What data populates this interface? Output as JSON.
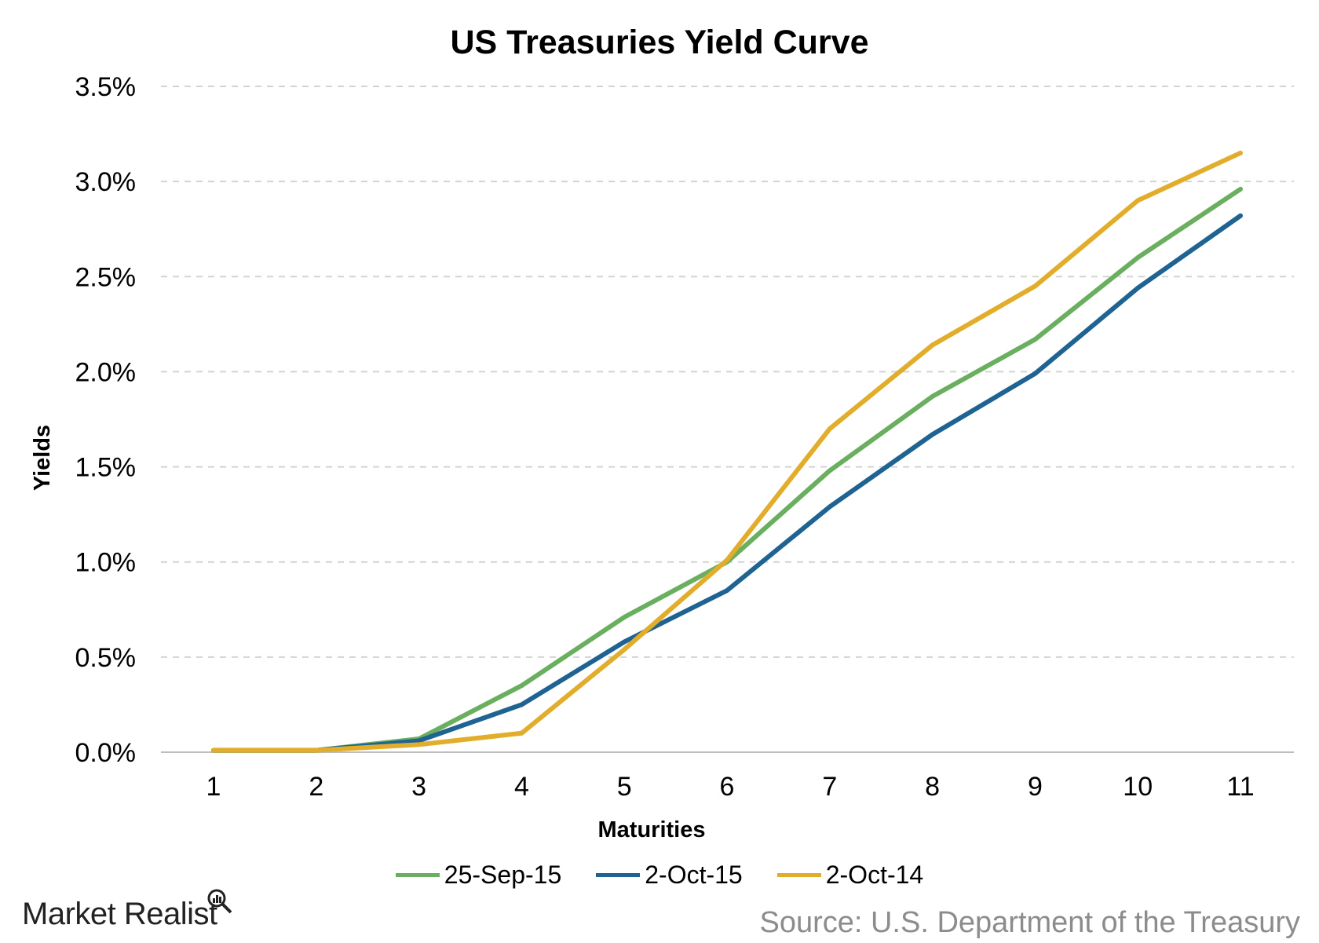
{
  "chart_data": {
    "type": "line",
    "title": "US Treasuries Yield Curve",
    "xlabel": "Maturities",
    "ylabel": "Yields",
    "categories": [
      "1",
      "2",
      "3",
      "4",
      "5",
      "6",
      "7",
      "8",
      "9",
      "10",
      "11"
    ],
    "ylim": [
      0,
      3.5
    ],
    "yticks": [
      "0.0%",
      "0.5%",
      "1.0%",
      "1.5%",
      "2.0%",
      "2.5%",
      "3.0%",
      "3.5%"
    ],
    "grid": true,
    "legend_position": "bottom",
    "series": [
      {
        "name": "25-Sep-15",
        "color": "#6aaf5f",
        "values": [
          0.01,
          0.01,
          0.07,
          0.35,
          0.71,
          1.0,
          1.48,
          1.87,
          2.17,
          2.6,
          2.96
        ]
      },
      {
        "name": "2-Oct-15",
        "color": "#1f6393",
        "values": [
          0.01,
          0.01,
          0.06,
          0.25,
          0.58,
          0.85,
          1.29,
          1.67,
          1.99,
          2.44,
          2.82
        ]
      },
      {
        "name": "2-Oct-14",
        "color": "#e2ad2b",
        "values": [
          0.01,
          0.01,
          0.04,
          0.1,
          0.54,
          1.01,
          1.7,
          2.14,
          2.45,
          2.9,
          3.15
        ]
      }
    ]
  },
  "branding": {
    "logo_text": "Market Realist"
  },
  "footer": {
    "source": "Source: U.S. Department of the Treasury"
  }
}
